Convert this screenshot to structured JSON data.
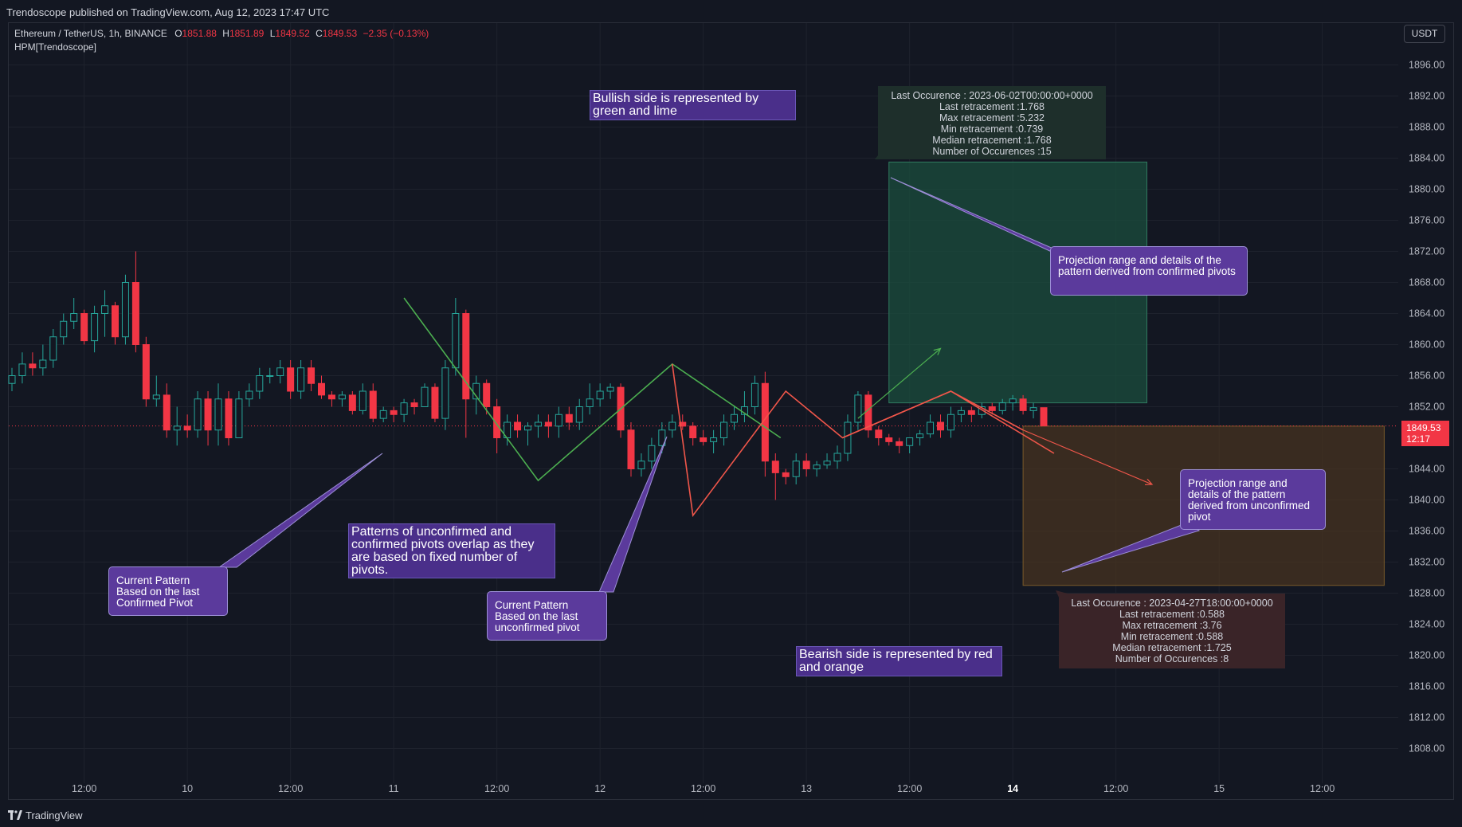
{
  "header": {
    "published": "Trendoscope published on TradingView.com, Aug 12, 2023 17:47 UTC"
  },
  "legend": {
    "symbol": "Ethereum / TetherUS, 1h, BINANCE",
    "o_label": "O",
    "o": "1851.88",
    "h_label": "H",
    "h": "1851.89",
    "l_label": "L",
    "l": "1849.52",
    "c_label": "C",
    "c": "1849.53",
    "change": "−2.35 (−0.13%)",
    "indicator": "HPM[Trendoscope]"
  },
  "currency": "USDT",
  "last_price": {
    "value": "1849.53",
    "countdown": "12:17"
  },
  "annotations": {
    "bullish_note": "Bullish side is represented by green and lime",
    "bearish_note": "Bearish side is represented by red and orange",
    "overlap_note": "Patterns of unconfirmed and confirmed pivots overlap as they are based on fixed number of pivots.",
    "confirmed_note": "Current Pattern Based on the last Confirmed Pivot",
    "unconfirmed_note": "Current Pattern Based on the last unconfirmed pivot",
    "proj_confirmed_note": "Projection range and details of the pattern derived from confirmed pivots",
    "proj_unconfirmed_note": "Projection range and details of the pattern derived from unconfirmed pivot"
  },
  "stats_bull": [
    "Last Occurence : 2023-06-02T00:00:00+0000",
    "Last retracement :1.768",
    "Max retracement :5.232",
    "Min retracement :0.739",
    "Median retracement :1.768",
    "Number of Occurences :15"
  ],
  "stats_bear": [
    "Last Occurence : 2023-04-27T18:00:00+0000",
    "Last retracement :0.588",
    "Max retracement :3.76",
    "Min retracement :0.588",
    "Median retracement :1.725",
    "Number of Occurences :8"
  ],
  "footer": {
    "brand": "TradingView"
  },
  "colors": {
    "up": "#26a69a",
    "down": "#f23645",
    "bull_line": "#4caf50",
    "bear_line": "#f0564a",
    "bull_zone": "#1b4d3e",
    "bear_zone": "#4a3520",
    "grid": "#1e222d",
    "axis_text": "#b2b5be"
  },
  "chart_data": {
    "type": "candlestick",
    "title": "Ethereum / TetherUS, 1h, BINANCE",
    "ylabel": "USDT",
    "ylim": [
      1804,
      1898
    ],
    "y_ticks": [
      "1896.00",
      "1892.00",
      "1888.00",
      "1884.00",
      "1880.00",
      "1876.00",
      "1872.00",
      "1868.00",
      "1864.00",
      "1860.00",
      "1856.00",
      "1852.00",
      "1844.00",
      "1840.00",
      "1836.00",
      "1832.00",
      "1828.00",
      "1824.00",
      "1820.00",
      "1816.00",
      "1812.00",
      "1808.00"
    ],
    "x_index_range": [
      0,
      132
    ],
    "x_ticks": [
      {
        "i": 7,
        "label": "12:00"
      },
      {
        "i": 17,
        "label": "10"
      },
      {
        "i": 27,
        "label": "12:00"
      },
      {
        "i": 37,
        "label": "11"
      },
      {
        "i": 47,
        "label": "12:00"
      },
      {
        "i": 57,
        "label": "12"
      },
      {
        "i": 67,
        "label": "12:00"
      },
      {
        "i": 77,
        "label": "13"
      },
      {
        "i": 87,
        "label": "12:00"
      },
      {
        "i": 97,
        "label": "14",
        "bold": true
      },
      {
        "i": 107,
        "label": "12:00"
      },
      {
        "i": 117,
        "label": "15"
      },
      {
        "i": 127,
        "label": "12:00"
      }
    ],
    "candles": [
      [
        1855,
        1857,
        1854,
        1856
      ],
      [
        1856,
        1859,
        1855,
        1857.5
      ],
      [
        1857.5,
        1859,
        1856,
        1857
      ],
      [
        1857,
        1860,
        1856,
        1858
      ],
      [
        1858,
        1862,
        1857,
        1861
      ],
      [
        1861,
        1864,
        1860,
        1863
      ],
      [
        1863,
        1866,
        1862,
        1864
      ],
      [
        1864,
        1864.5,
        1860,
        1860.5
      ],
      [
        1860.5,
        1865,
        1859,
        1864
      ],
      [
        1864,
        1867,
        1861,
        1865
      ],
      [
        1865,
        1865.5,
        1860,
        1861
      ],
      [
        1861,
        1869,
        1860,
        1868
      ],
      [
        1868,
        1872,
        1859,
        1860
      ],
      [
        1860,
        1861,
        1852,
        1853
      ],
      [
        1853,
        1856,
        1852,
        1853.5
      ],
      [
        1853.5,
        1855,
        1848,
        1849
      ],
      [
        1849,
        1852,
        1847,
        1849.5
      ],
      [
        1849.5,
        1851,
        1848,
        1849
      ],
      [
        1849,
        1854,
        1848,
        1853
      ],
      [
        1853,
        1854,
        1847,
        1849
      ],
      [
        1849,
        1855,
        1847,
        1853
      ],
      [
        1853,
        1854,
        1847,
        1848
      ],
      [
        1848,
        1854,
        1848,
        1853
      ],
      [
        1853,
        1855,
        1852,
        1854
      ],
      [
        1854,
        1857,
        1853,
        1856
      ],
      [
        1856,
        1857,
        1855,
        1856
      ],
      [
        1856,
        1858,
        1855,
        1857
      ],
      [
        1857,
        1858,
        1853,
        1854
      ],
      [
        1854,
        1858,
        1853,
        1857
      ],
      [
        1857,
        1858,
        1854,
        1855
      ],
      [
        1855,
        1856,
        1853,
        1853.5
      ],
      [
        1853.5,
        1854,
        1852,
        1853
      ],
      [
        1853,
        1854,
        1852,
        1853.5
      ],
      [
        1853.5,
        1854,
        1851,
        1851.5
      ],
      [
        1851.5,
        1855,
        1851,
        1854
      ],
      [
        1854,
        1855,
        1850,
        1850.5
      ],
      [
        1850.5,
        1852,
        1850,
        1851.5
      ],
      [
        1851.5,
        1852,
        1850,
        1851
      ],
      [
        1851,
        1853,
        1850,
        1852.5
      ],
      [
        1852.5,
        1853,
        1851,
        1852
      ],
      [
        1852,
        1855,
        1852,
        1854.5
      ],
      [
        1854.5,
        1855,
        1850,
        1850.5
      ],
      [
        1850.5,
        1858,
        1849,
        1857
      ],
      [
        1857,
        1866,
        1856,
        1864
      ],
      [
        1864,
        1864.5,
        1848,
        1853
      ],
      [
        1853,
        1856,
        1851,
        1855
      ],
      [
        1855,
        1855.5,
        1851,
        1852
      ],
      [
        1852,
        1853,
        1846,
        1848
      ],
      [
        1848,
        1851,
        1847,
        1850
      ],
      [
        1850,
        1851,
        1848,
        1849
      ],
      [
        1849,
        1850,
        1847,
        1849.5
      ],
      [
        1849.5,
        1851,
        1848,
        1850
      ],
      [
        1850,
        1851,
        1848,
        1849.5
      ],
      [
        1849.5,
        1852,
        1848,
        1851
      ],
      [
        1851,
        1852,
        1849,
        1850
      ],
      [
        1850,
        1853,
        1849,
        1852
      ],
      [
        1852,
        1855,
        1851,
        1853
      ],
      [
        1853,
        1855,
        1852,
        1854
      ],
      [
        1854,
        1855,
        1853,
        1854.5
      ],
      [
        1854.5,
        1855,
        1848,
        1849
      ],
      [
        1849,
        1850,
        1843,
        1844
      ],
      [
        1844,
        1846,
        1843,
        1845
      ],
      [
        1845,
        1848,
        1844,
        1847
      ],
      [
        1847,
        1850,
        1846,
        1849
      ],
      [
        1849,
        1851,
        1848,
        1850
      ],
      [
        1850,
        1851,
        1849,
        1849.5
      ],
      [
        1849.5,
        1850,
        1847,
        1848
      ],
      [
        1848,
        1849,
        1847,
        1847.5
      ],
      [
        1847.5,
        1849,
        1846,
        1848
      ],
      [
        1848,
        1851,
        1847,
        1850
      ],
      [
        1850,
        1852,
        1849,
        1851
      ],
      [
        1851,
        1854,
        1850,
        1852
      ],
      [
        1852,
        1856,
        1851,
        1855
      ],
      [
        1855,
        1856.5,
        1843,
        1845
      ],
      [
        1845,
        1846,
        1840,
        1843.5
      ],
      [
        1843.5,
        1844,
        1842,
        1843
      ],
      [
        1843,
        1846,
        1842,
        1845
      ],
      [
        1845,
        1846,
        1843,
        1844
      ],
      [
        1844,
        1845,
        1843,
        1844.5
      ],
      [
        1844.5,
        1846,
        1844,
        1845
      ],
      [
        1845,
        1847,
        1844,
        1846
      ],
      [
        1846,
        1851,
        1845,
        1850
      ],
      [
        1850,
        1854,
        1849,
        1853.5
      ],
      [
        1853.5,
        1854,
        1848,
        1849
      ],
      [
        1849,
        1849.5,
        1847,
        1848
      ],
      [
        1848,
        1848.5,
        1847,
        1847.5
      ],
      [
        1847.5,
        1848,
        1846,
        1847
      ],
      [
        1847,
        1848,
        1846,
        1848
      ],
      [
        1848,
        1849,
        1847,
        1848.5
      ],
      [
        1848.5,
        1851,
        1848,
        1850
      ],
      [
        1850,
        1851,
        1848,
        1849
      ],
      [
        1849,
        1852,
        1848,
        1851
      ],
      [
        1851,
        1852,
        1850,
        1851.5
      ],
      [
        1851.5,
        1852,
        1850,
        1851
      ],
      [
        1851,
        1852.5,
        1850.5,
        1852
      ],
      [
        1852,
        1852.5,
        1851,
        1851.5
      ],
      [
        1851.5,
        1853,
        1851,
        1852.5
      ],
      [
        1852.5,
        1853.5,
        1851.5,
        1853
      ],
      [
        1853,
        1853.5,
        1851,
        1851.5
      ],
      [
        1851.5,
        1852.5,
        1850.5,
        1851.88
      ],
      [
        1851.88,
        1851.89,
        1849.52,
        1849.53
      ]
    ],
    "last_price": 1849.53,
    "bull_zone": {
      "from_i": 85,
      "to_i": 110,
      "low": 1852.5,
      "high": 1883.5
    },
    "bear_zone": {
      "from_i": 98,
      "to_i": 133,
      "low": 1829,
      "high": 1849.5
    },
    "pattern_confirmed": {
      "color": "bull",
      "points": [
        [
          38,
          1866
        ],
        [
          51,
          1842.5
        ],
        [
          64,
          1857.5
        ],
        [
          74.5,
          1848
        ]
      ]
    },
    "pattern_red_1": {
      "points": [
        [
          64,
          1857.5
        ],
        [
          66,
          1838
        ],
        [
          75,
          1854
        ],
        [
          80.5,
          1848
        ],
        [
          91,
          1854
        ],
        [
          101,
          1846
        ]
      ]
    },
    "pattern_unconfirmed": {
      "points": [
        [
          80.5,
          1848
        ],
        [
          91,
          1854
        ],
        [
          98,
          1849
        ]
      ]
    },
    "bull_projection": {
      "from": [
        82,
        1850.5
      ],
      "to": [
        90,
        1859.5
      ]
    },
    "bear_projection": {
      "from": [
        98,
        1849
      ],
      "to": [
        110.5,
        1842
      ]
    }
  }
}
